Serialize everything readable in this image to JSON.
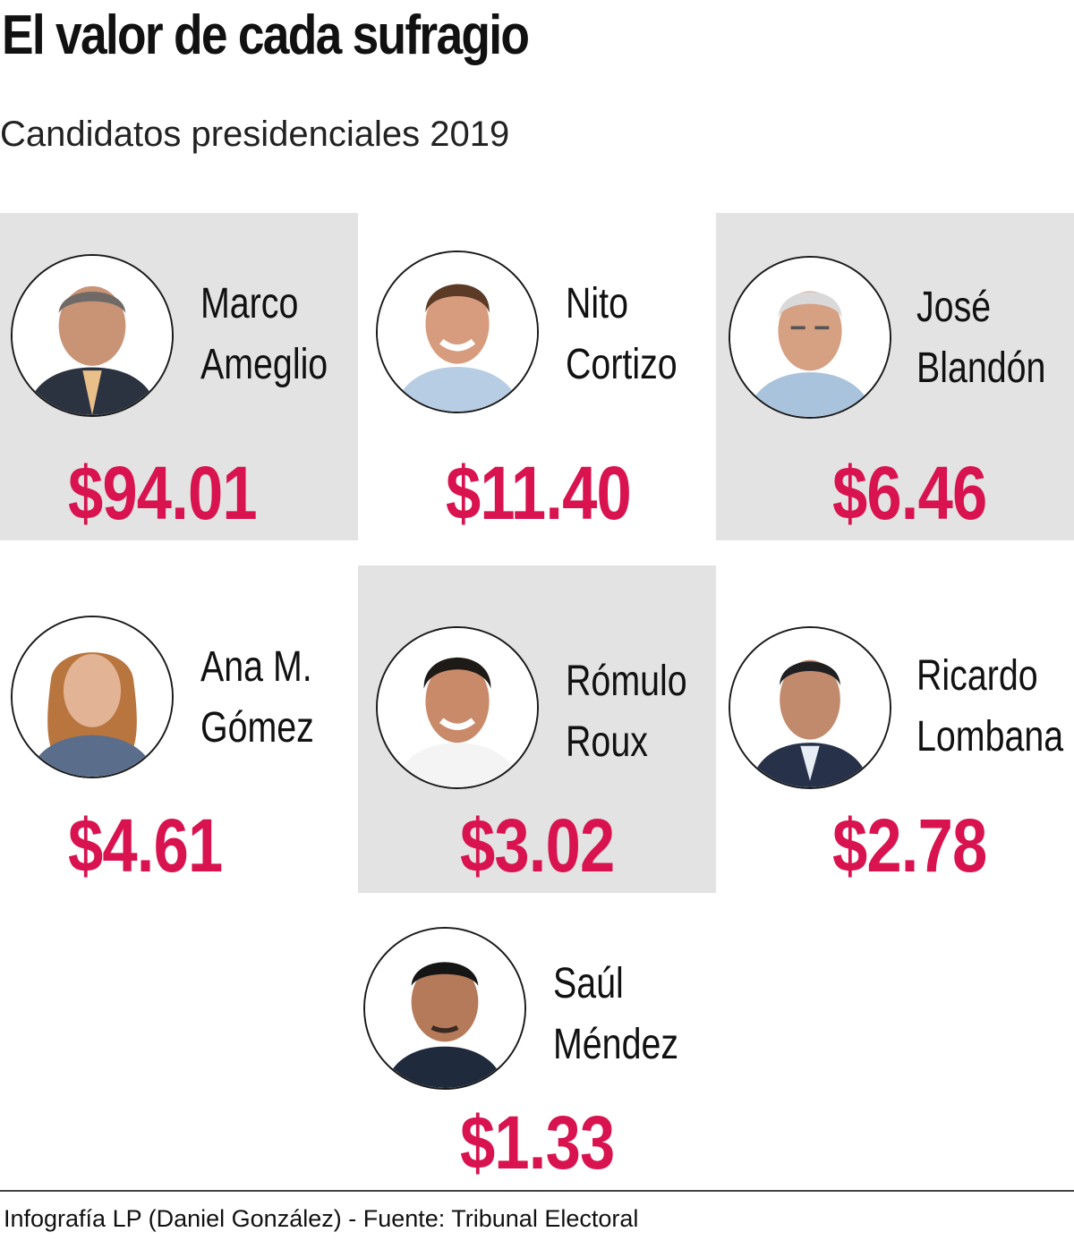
{
  "title": "El valor de cada sufragio",
  "subtitle": "Candidatos presidenciales 2019",
  "colors": {
    "accent": "#d8134f",
    "panel": "#e3e3e3"
  },
  "candidates": [
    {
      "first": "Marco",
      "last": "Ameglio",
      "value": "$94.01",
      "shaded": true
    },
    {
      "first": "Nito",
      "last": "Cortizo",
      "value": "$11.40",
      "shaded": false
    },
    {
      "first": "José",
      "last": "Blandón",
      "value": "$6.46",
      "shaded": true
    },
    {
      "first": "Ana M.",
      "last": "Gómez",
      "value": "$4.61",
      "shaded": false
    },
    {
      "first": "Rómulo",
      "last": "Roux",
      "value": "$3.02",
      "shaded": true
    },
    {
      "first": "Ricardo",
      "last": "Lombana",
      "value": "$2.78",
      "shaded": false
    },
    {
      "first": "Saúl",
      "last": "Méndez",
      "value": "$1.33",
      "shaded": false
    }
  ],
  "footer": {
    "credit": "Infografía LP (Daniel González) - Fuente: Tribunal Electoral"
  }
}
